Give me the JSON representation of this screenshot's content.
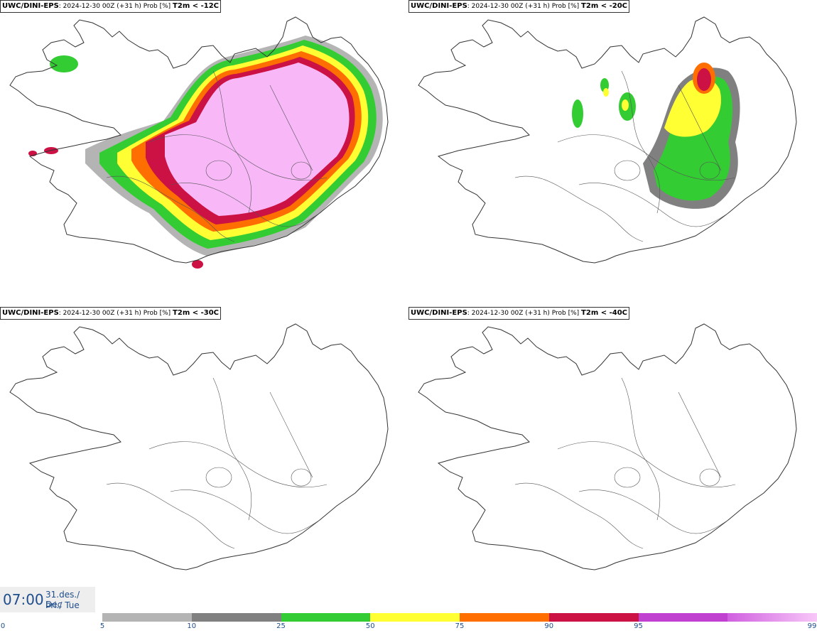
{
  "panels": [
    {
      "model": "UWC/DINI-EPS",
      "run": ": 2024-12-30 00Z (+31 h) Prob [%]",
      "threshold": "T2m < -12C",
      "coverage": "high"
    },
    {
      "model": "UWC/DINI-EPS",
      "run": ": 2024-12-30 00Z (+31 h) Prob [%]",
      "threshold": "T2m < -20C",
      "coverage": "medium"
    },
    {
      "model": "UWC/DINI-EPS",
      "run": ": 2024-12-30 00Z (+31 h) Prob [%]",
      "threshold": "T2m < -30C",
      "coverage": "none"
    },
    {
      "model": "UWC/DINI-EPS",
      "run": ": 2024-12-30 00Z (+31 h) Prob [%]",
      "threshold": "T2m < -40C",
      "coverage": "none"
    }
  ],
  "valid_time": {
    "time": "07:00",
    "date_line": "31.des./ Dec",
    "day_line": "Þri./ Tue"
  },
  "legend": {
    "ticks": [
      "0",
      "5",
      "10",
      "25",
      "50",
      "75",
      "90",
      "95",
      "99"
    ],
    "colors": [
      "#b4b4b4",
      "#808080",
      "#33cc33",
      "#ffff33",
      "#ff6e00",
      "#cc1144",
      "#c040d0",
      "#f8b8f8"
    ]
  }
}
